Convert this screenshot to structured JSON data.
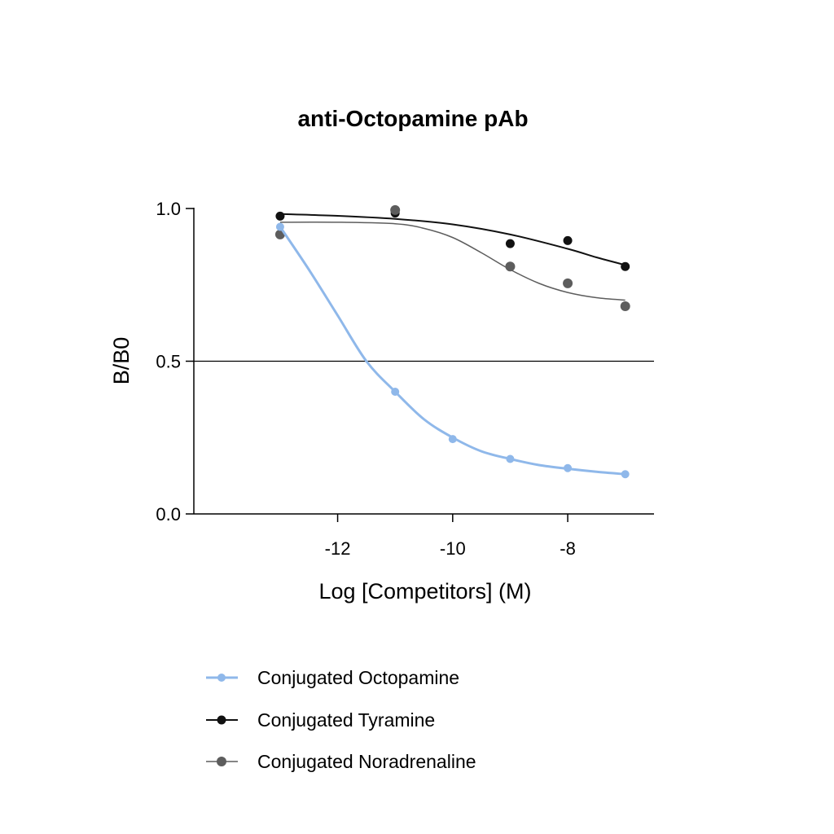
{
  "chart_data": {
    "type": "scatter",
    "title": "anti-Octopamine pAb",
    "xlabel": "Log [Competitors] (M)",
    "ylabel": "B/B0",
    "xlim": [
      -14.5,
      -6.5
    ],
    "ylim": [
      0.0,
      1.0
    ],
    "xticks": [
      -12,
      -10,
      -8
    ],
    "xtick_labels": [
      "-12",
      "-10",
      "-8"
    ],
    "yticks": [
      0.0,
      0.5,
      1.0
    ],
    "ytick_labels": [
      "0.0",
      "0.5",
      "1.0"
    ],
    "reference_line_y": 0.5,
    "grid": false,
    "legend_position": "bottom",
    "series": [
      {
        "name": "Conjugated Octopamine",
        "color": "#8fb8ea",
        "line_width": 3,
        "marker_radius": 5,
        "x": [
          -13,
          -11,
          -10,
          -9,
          -8,
          -7
        ],
        "y": [
          0.94,
          0.4,
          0.245,
          0.18,
          0.15,
          0.13
        ],
        "fit": [
          [
            -13,
            0.94
          ],
          [
            -12.5,
            0.8
          ],
          [
            -12,
            0.65
          ],
          [
            -11.5,
            0.5
          ],
          [
            -11,
            0.4
          ],
          [
            -10.5,
            0.31
          ],
          [
            -10,
            0.25
          ],
          [
            -9.5,
            0.205
          ],
          [
            -9,
            0.18
          ],
          [
            -8.5,
            0.16
          ],
          [
            -8,
            0.148
          ],
          [
            -7.5,
            0.138
          ],
          [
            -7,
            0.13
          ]
        ]
      },
      {
        "name": "Conjugated Tyramine",
        "color": "#111111",
        "line_width": 2,
        "marker_radius": 5.5,
        "x": [
          -13,
          -11,
          -9,
          -8,
          -7
        ],
        "y": [
          0.975,
          0.985,
          0.885,
          0.895,
          0.81
        ],
        "fit": [
          [
            -13,
            0.982
          ],
          [
            -12,
            0.976
          ],
          [
            -11,
            0.966
          ],
          [
            -10,
            0.948
          ],
          [
            -9,
            0.915
          ],
          [
            -8,
            0.868
          ],
          [
            -7.5,
            0.84
          ],
          [
            -7,
            0.815
          ]
        ]
      },
      {
        "name": "Conjugated Noradrenaline",
        "color": "#5d5d5d",
        "line_width": 1.5,
        "marker_radius": 6,
        "x": [
          -13,
          -11,
          -9,
          -8,
          -7
        ],
        "y": [
          0.915,
          0.995,
          0.81,
          0.755,
          0.68
        ],
        "fit": [
          [
            -13,
            0.955
          ],
          [
            -12,
            0.955
          ],
          [
            -11,
            0.95
          ],
          [
            -10.5,
            0.935
          ],
          [
            -10,
            0.905
          ],
          [
            -9.5,
            0.855
          ],
          [
            -9,
            0.8
          ],
          [
            -8.5,
            0.755
          ],
          [
            -8,
            0.725
          ],
          [
            -7.5,
            0.708
          ],
          [
            -7,
            0.7
          ]
        ]
      }
    ]
  }
}
